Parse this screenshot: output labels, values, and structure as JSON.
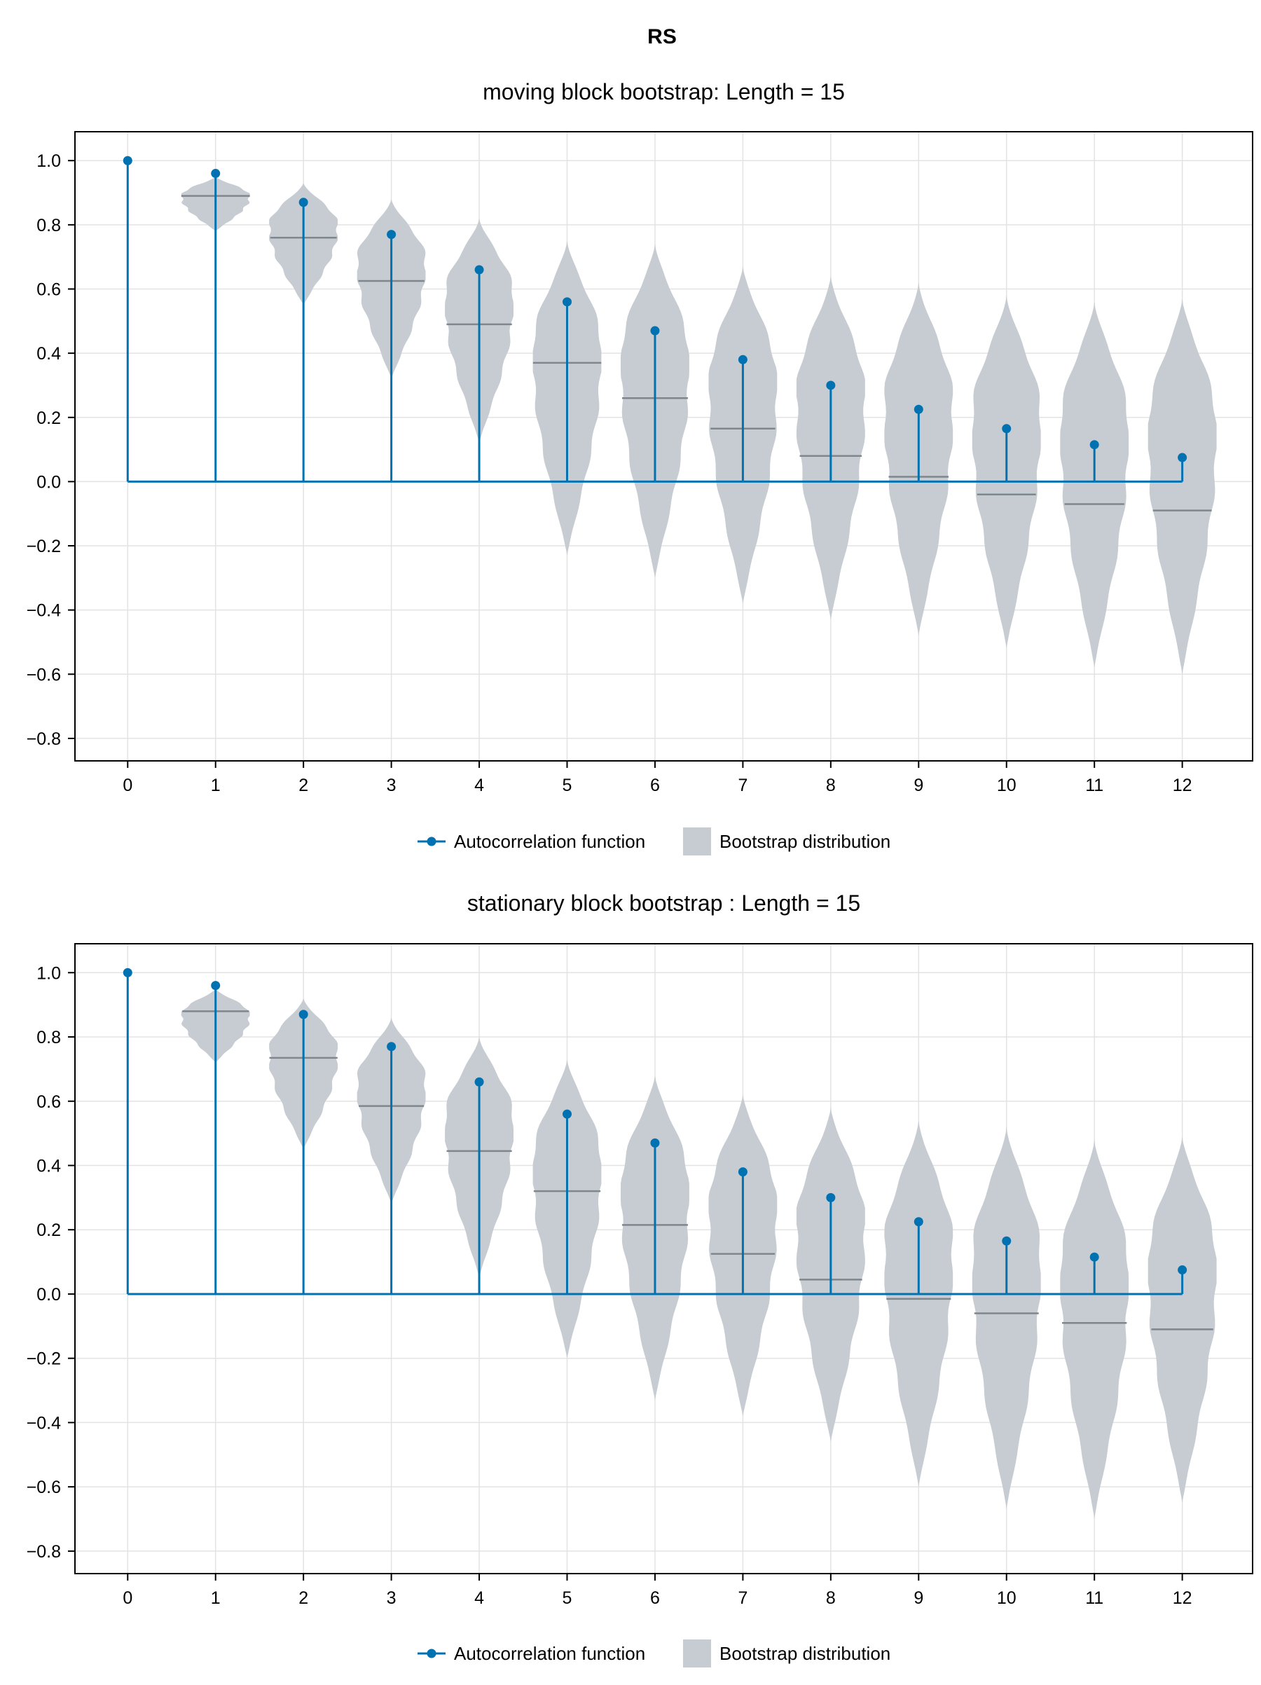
{
  "figure": {
    "title": "RS"
  },
  "colors": {
    "acf": "#0072b2",
    "violin_fill": "#c6ccd2",
    "median_line": "#7f868c",
    "grid": "#e3e3e3",
    "frame": "#000000"
  },
  "chart_data": [
    {
      "type": "violin+stem",
      "title": "moving block bootstrap: Length = 15",
      "xlabel": "",
      "ylabel": "",
      "x_ticks": [
        "0",
        "1",
        "2",
        "3",
        "4",
        "5",
        "6",
        "7",
        "8",
        "9",
        "10",
        "11",
        "12"
      ],
      "y_ticks": [
        "1.0",
        "0.8",
        "0.6",
        "0.4",
        "0.2",
        "0.0",
        "−0.2",
        "−0.4",
        "−0.6",
        "−0.8"
      ],
      "xlim": [
        -0.6,
        12.8
      ],
      "ylim": [
        -0.87,
        1.09
      ],
      "grid": true,
      "legend": {
        "position": "bottom-center",
        "entries": [
          "Autocorrelation function",
          "Bootstrap distribution"
        ]
      },
      "series": [
        {
          "name": "Autocorrelation function",
          "lags": [
            0,
            1,
            2,
            3,
            4,
            5,
            6,
            7,
            8,
            9,
            10,
            11,
            12
          ],
          "values": [
            1.0,
            0.96,
            0.87,
            0.77,
            0.66,
            0.56,
            0.47,
            0.38,
            0.3,
            0.225,
            0.165,
            0.115,
            0.075
          ]
        },
        {
          "name": "Bootstrap distribution",
          "lags": [
            1,
            2,
            3,
            4,
            5,
            6,
            7,
            8,
            9,
            10,
            11,
            12
          ],
          "median": [
            0.89,
            0.76,
            0.625,
            0.49,
            0.37,
            0.26,
            0.165,
            0.08,
            0.015,
            -0.04,
            -0.07,
            -0.09
          ],
          "min": [
            0.78,
            0.55,
            0.32,
            0.12,
            -0.23,
            -0.3,
            -0.38,
            -0.43,
            -0.48,
            -0.52,
            -0.58,
            -0.6
          ],
          "max": [
            0.95,
            0.93,
            0.88,
            0.82,
            0.75,
            0.74,
            0.67,
            0.64,
            0.62,
            0.58,
            0.56,
            0.57
          ]
        }
      ]
    },
    {
      "type": "violin+stem",
      "title": "stationary block bootstrap : Length = 15",
      "xlabel": "",
      "ylabel": "",
      "x_ticks": [
        "0",
        "1",
        "2",
        "3",
        "4",
        "5",
        "6",
        "7",
        "8",
        "9",
        "10",
        "11",
        "12"
      ],
      "y_ticks": [
        "1.0",
        "0.8",
        "0.6",
        "0.4",
        "0.2",
        "0.0",
        "−0.2",
        "−0.4",
        "−0.6",
        "−0.8"
      ],
      "xlim": [
        -0.6,
        12.8
      ],
      "ylim": [
        -0.87,
        1.09
      ],
      "grid": true,
      "legend": {
        "position": "bottom-center",
        "entries": [
          "Autocorrelation function",
          "Bootstrap distribution"
        ]
      },
      "series": [
        {
          "name": "Autocorrelation function",
          "lags": [
            0,
            1,
            2,
            3,
            4,
            5,
            6,
            7,
            8,
            9,
            10,
            11,
            12
          ],
          "values": [
            1.0,
            0.96,
            0.87,
            0.77,
            0.66,
            0.56,
            0.47,
            0.38,
            0.3,
            0.225,
            0.165,
            0.115,
            0.075
          ]
        },
        {
          "name": "Bootstrap distribution",
          "lags": [
            1,
            2,
            3,
            4,
            5,
            6,
            7,
            8,
            9,
            10,
            11,
            12
          ],
          "median": [
            0.88,
            0.735,
            0.585,
            0.445,
            0.32,
            0.215,
            0.125,
            0.045,
            -0.015,
            -0.06,
            -0.09,
            -0.11
          ],
          "min": [
            0.72,
            0.45,
            0.28,
            0.05,
            -0.2,
            -0.33,
            -0.38,
            -0.46,
            -0.6,
            -0.67,
            -0.7,
            -0.65
          ],
          "max": [
            0.95,
            0.92,
            0.86,
            0.8,
            0.73,
            0.68,
            0.62,
            0.58,
            0.54,
            0.52,
            0.48,
            0.49
          ]
        }
      ]
    }
  ]
}
